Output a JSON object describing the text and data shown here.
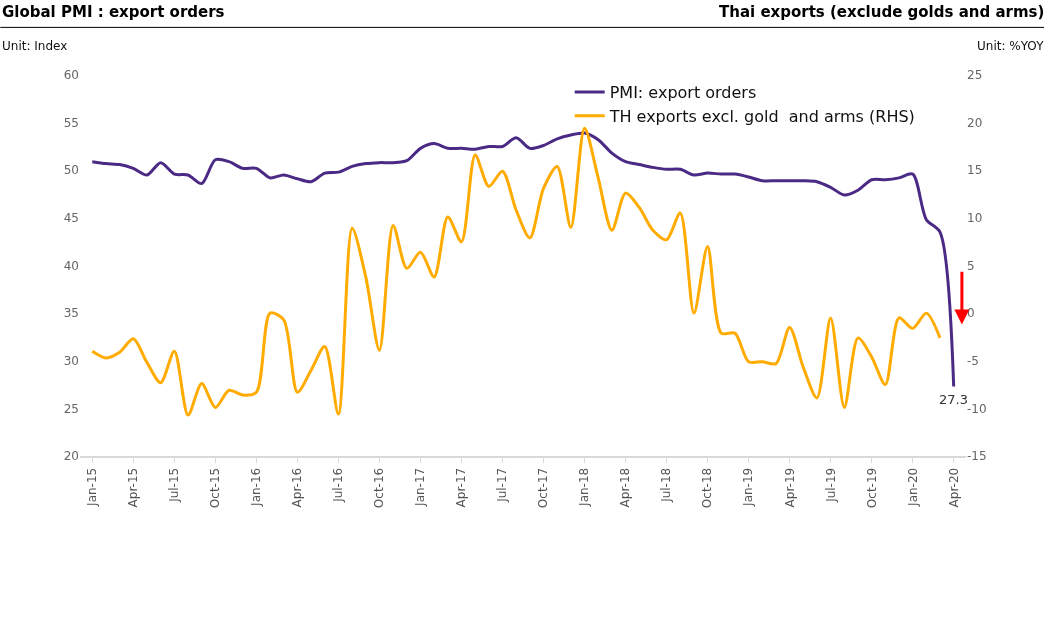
{
  "chart_data": {
    "type": "line",
    "title": "Global PMI : export orders",
    "subtitle": "Thai exports (exclude golds and arms)",
    "ylabel": "Unit: Index",
    "y2label": "Unit: %YOY",
    "categories": [
      "Jan-15",
      null,
      null,
      "Apr-15",
      null,
      null,
      "Jul-15",
      null,
      null,
      "Oct-15",
      null,
      null,
      "Jan-16",
      null,
      null,
      "Apr-16",
      null,
      null,
      "Jul-16",
      null,
      null,
      "Oct-16",
      null,
      null,
      "Jan-17",
      null,
      null,
      "Apr-17",
      null,
      null,
      "Jul-17",
      null,
      null,
      "Oct-17",
      null,
      null,
      "Jan-18",
      null,
      null,
      "Apr-18",
      null,
      null,
      "Jul-18",
      null,
      null,
      "Oct-18",
      null,
      null,
      "Jan-19",
      null,
      null,
      "Apr-19",
      null,
      null,
      "Jul-19",
      null,
      null,
      "Oct-19",
      null,
      null,
      "Jan-20",
      null,
      null,
      "Apr-20"
    ],
    "series": [
      {
        "name": "PMI: export orders",
        "color": "#4b2a85",
        "values": [
          50.9,
          50.7,
          50.6,
          50.2,
          49.5,
          50.8,
          49.6,
          49.5,
          48.6,
          51.1,
          50.9,
          50.2,
          50.2,
          49.2,
          49.5,
          49.1,
          48.8,
          49.7,
          49.8,
          50.4,
          50.7,
          50.8,
          50.8,
          51.0,
          52.3,
          52.8,
          52.3,
          52.3,
          52.2,
          52.5,
          52.5,
          53.4,
          52.3,
          52.6,
          53.3,
          53.7,
          53.9,
          53.2,
          51.8,
          50.9,
          50.6,
          50.3,
          50.1,
          50.1,
          49.5,
          49.7,
          49.6,
          49.6,
          49.3,
          48.9,
          48.9,
          48.9,
          48.9,
          48.8,
          48.2,
          47.4,
          47.9,
          49.0,
          49.0,
          49.2,
          49.6,
          44.8,
          43.5,
          27.3
        ]
      },
      {
        "name": "TH exports excl. gold  and arms (RHS)",
        "color": "#ffab00",
        "axis": "y2",
        "values": [
          -4.0,
          -4.7,
          -4.1,
          -2.7,
          -5.2,
          -7.3,
          -4.0,
          -10.7,
          -7.4,
          -9.9,
          -8.1,
          -8.6,
          -8.3,
          0.0,
          -0.7,
          -8.3,
          -6.0,
          -3.5,
          -10.6,
          8.9,
          3.8,
          -3.9,
          9.2,
          4.7,
          6.4,
          3.8,
          10.1,
          7.5,
          16.6,
          13.3,
          14.9,
          10.8,
          7.9,
          13.1,
          15.4,
          9.0,
          19.4,
          14.2,
          8.7,
          12.6,
          11.1,
          8.7,
          7.7,
          10.5,
          0.0,
          7.0,
          -2.1,
          -2.1,
          -5.1,
          -5.1,
          -5.3,
          -1.5,
          -5.7,
          -8.9,
          -0.5,
          -9.9,
          -2.6,
          -4.6,
          -7.5,
          -0.5,
          -1.6,
          0.0,
          -2.6,
          null
        ]
      }
    ],
    "ylim": [
      20,
      60
    ],
    "yticks": [
      20,
      25,
      30,
      35,
      40,
      45,
      50,
      55,
      60
    ],
    "y2lim": [
      -15,
      25
    ],
    "y2ticks": [
      -15,
      -10,
      -5,
      0,
      5,
      10,
      15,
      20,
      25
    ],
    "annotations": [
      {
        "text": "27.3",
        "x": "Apr-20",
        "y": 27.3
      }
    ],
    "legend": "top right"
  }
}
